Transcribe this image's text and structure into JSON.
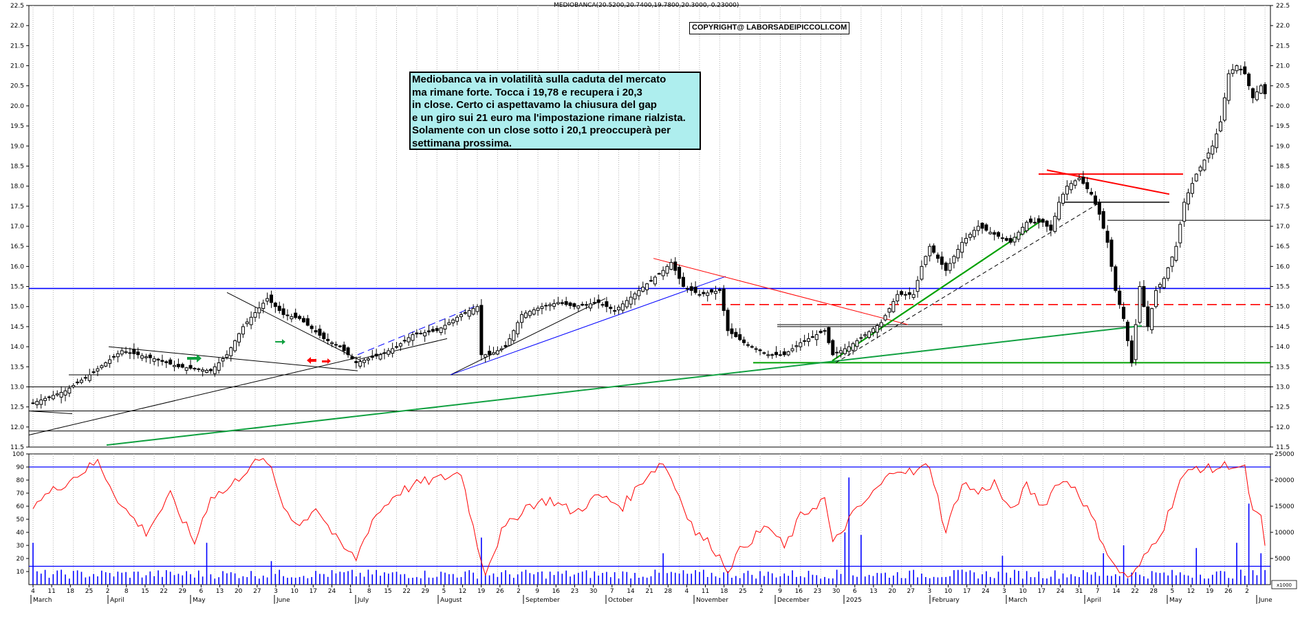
{
  "ticker_label": "MEDIOBANCA(20.5200,20.7400,19.7800,20.3000,-0.23000)",
  "copyright": "COPYRIGHT@ LABORSADEIPICCOLI.COM",
  "annotation_lines": [
    "Mediobanca va in volatilità sulla caduta del mercato",
    "ma rimane forte. Tocca i 19,78 e recupera i 20,3",
    "in close. Certo ci aspettavamo la chiusura del gap",
    "e un giro sui 21 euro ma l'impostazione rimane rialzista.",
    "Solamente con un close sotto i 20,1 preoccuperà per",
    "settimana prossima."
  ],
  "colors": {
    "candle": "#000000",
    "rsi": "#ff0000",
    "volume": "#0000ff",
    "support_green": "#00a000",
    "resistance_red": "#ff0000",
    "trend_blue": "#0000ff",
    "annotation_bg": "#aeeeee"
  },
  "chart_data": [
    {
      "type": "candlestick",
      "title": "MEDIOBANCA(20.5200,20.7400,19.7800,20.3000,-0.23000)",
      "ylim": [
        11.5,
        22.5
      ],
      "y_ticks": [
        "11.5",
        "12.0",
        "12.5",
        "13.0",
        "13.5",
        "14.0",
        "14.5",
        "15.0",
        "15.5",
        "16.0",
        "16.5",
        "17.0",
        "17.5",
        "18.0",
        "18.5",
        "19.0",
        "19.5",
        "20.0",
        "20.5",
        "21.0",
        "21.5",
        "22.0",
        "22.5"
      ],
      "last_bar": {
        "open": 20.52,
        "high": 20.74,
        "low": 19.78,
        "close": 20.3,
        "change": -0.23
      },
      "keyframes": [
        {
          "i": 0,
          "c": 12.6
        },
        {
          "i": 8,
          "c": 12.9
        },
        {
          "i": 14,
          "c": 13.3
        },
        {
          "i": 22,
          "c": 13.9
        },
        {
          "i": 30,
          "c": 13.7
        },
        {
          "i": 36,
          "c": 13.5
        },
        {
          "i": 44,
          "c": 13.4
        },
        {
          "i": 48,
          "c": 13.8
        },
        {
          "i": 52,
          "c": 14.5
        },
        {
          "i": 58,
          "c": 15.2
        },
        {
          "i": 62,
          "c": 14.8
        },
        {
          "i": 66,
          "c": 14.7
        },
        {
          "i": 72,
          "c": 14.2
        },
        {
          "i": 76,
          "c": 14.0
        },
        {
          "i": 80,
          "c": 13.6
        },
        {
          "i": 86,
          "c": 13.8
        },
        {
          "i": 90,
          "c": 14.0
        },
        {
          "i": 94,
          "c": 14.3
        },
        {
          "i": 100,
          "c": 14.4
        },
        {
          "i": 106,
          "c": 14.8
        },
        {
          "i": 110,
          "c": 15.0
        },
        {
          "i": 111,
          "c": 13.8
        },
        {
          "i": 113,
          "c": 13.8
        },
        {
          "i": 117,
          "c": 14.0
        },
        {
          "i": 121,
          "c": 14.8
        },
        {
          "i": 126,
          "c": 15.0
        },
        {
          "i": 130,
          "c": 15.1
        },
        {
          "i": 134,
          "c": 15.0
        },
        {
          "i": 140,
          "c": 15.1
        },
        {
          "i": 144,
          "c": 14.9
        },
        {
          "i": 150,
          "c": 15.4
        },
        {
          "i": 156,
          "c": 15.9
        },
        {
          "i": 158,
          "c": 16.1
        },
        {
          "i": 161,
          "c": 15.5
        },
        {
          "i": 165,
          "c": 15.3
        },
        {
          "i": 170,
          "c": 15.4
        },
        {
          "i": 172,
          "c": 14.4
        },
        {
          "i": 176,
          "c": 14.1
        },
        {
          "i": 182,
          "c": 13.8
        },
        {
          "i": 186,
          "c": 13.8
        },
        {
          "i": 190,
          "c": 14.1
        },
        {
          "i": 196,
          "c": 14.4
        },
        {
          "i": 198,
          "c": 13.8
        },
        {
          "i": 202,
          "c": 14.0
        },
        {
          "i": 206,
          "c": 14.3
        },
        {
          "i": 210,
          "c": 14.6
        },
        {
          "i": 214,
          "c": 15.3
        },
        {
          "i": 218,
          "c": 15.3
        },
        {
          "i": 220,
          "c": 16.0
        },
        {
          "i": 222,
          "c": 16.5
        },
        {
          "i": 226,
          "c": 15.9
        },
        {
          "i": 230,
          "c": 16.6
        },
        {
          "i": 234,
          "c": 17.0
        },
        {
          "i": 238,
          "c": 16.8
        },
        {
          "i": 242,
          "c": 16.6
        },
        {
          "i": 246,
          "c": 17.1
        },
        {
          "i": 250,
          "c": 17.1
        },
        {
          "i": 252,
          "c": 16.9
        },
        {
          "i": 254,
          "c": 17.6
        },
        {
          "i": 256,
          "c": 18.0
        },
        {
          "i": 259,
          "c": 18.2
        },
        {
          "i": 262,
          "c": 17.8
        },
        {
          "i": 264,
          "c": 17.3
        },
        {
          "i": 266,
          "c": 16.6
        },
        {
          "i": 268,
          "c": 15.4
        },
        {
          "i": 270,
          "c": 14.7
        },
        {
          "i": 272,
          "c": 13.6
        },
        {
          "i": 274,
          "c": 15.5
        },
        {
          "i": 276,
          "c": 14.5
        },
        {
          "i": 278,
          "c": 15.4
        },
        {
          "i": 280,
          "c": 15.7
        },
        {
          "i": 283,
          "c": 16.5
        },
        {
          "i": 285,
          "c": 17.6
        },
        {
          "i": 288,
          "c": 18.3
        },
        {
          "i": 292,
          "c": 19.0
        },
        {
          "i": 294,
          "c": 19.6
        },
        {
          "i": 296,
          "c": 20.8
        },
        {
          "i": 298,
          "c": 21.0
        },
        {
          "i": 300,
          "c": 20.8
        },
        {
          "i": 302,
          "c": 20.2
        },
        {
          "i": 304,
          "c": 20.5
        },
        {
          "i": 305,
          "c": 20.3
        }
      ]
    },
    {
      "type": "line",
      "series": [
        {
          "name": "",
          "note": "oscillator"
        }
      ],
      "ylim": [
        0,
        100
      ],
      "y_ticks": [
        "10",
        "20",
        "30",
        "40",
        "50",
        "60",
        "70",
        "80",
        "90",
        "100"
      ],
      "reference_lines": [
        90,
        14
      ],
      "keyframes": [
        {
          "i": 0,
          "v": 62
        },
        {
          "i": 8,
          "v": 78
        },
        {
          "i": 16,
          "v": 94
        },
        {
          "i": 22,
          "v": 60
        },
        {
          "i": 28,
          "v": 40
        },
        {
          "i": 34,
          "v": 68
        },
        {
          "i": 40,
          "v": 32
        },
        {
          "i": 44,
          "v": 68
        },
        {
          "i": 48,
          "v": 72
        },
        {
          "i": 54,
          "v": 92
        },
        {
          "i": 58,
          "v": 95
        },
        {
          "i": 62,
          "v": 60
        },
        {
          "i": 66,
          "v": 45
        },
        {
          "i": 70,
          "v": 60
        },
        {
          "i": 76,
          "v": 30
        },
        {
          "i": 80,
          "v": 20
        },
        {
          "i": 84,
          "v": 50
        },
        {
          "i": 90,
          "v": 70
        },
        {
          "i": 96,
          "v": 78
        },
        {
          "i": 102,
          "v": 82
        },
        {
          "i": 106,
          "v": 86
        },
        {
          "i": 110,
          "v": 30
        },
        {
          "i": 112,
          "v": 10
        },
        {
          "i": 116,
          "v": 40
        },
        {
          "i": 122,
          "v": 60
        },
        {
          "i": 128,
          "v": 65
        },
        {
          "i": 134,
          "v": 55
        },
        {
          "i": 140,
          "v": 68
        },
        {
          "i": 146,
          "v": 60
        },
        {
          "i": 152,
          "v": 84
        },
        {
          "i": 156,
          "v": 94
        },
        {
          "i": 160,
          "v": 68
        },
        {
          "i": 164,
          "v": 40
        },
        {
          "i": 168,
          "v": 30
        },
        {
          "i": 172,
          "v": 12
        },
        {
          "i": 176,
          "v": 30
        },
        {
          "i": 182,
          "v": 45
        },
        {
          "i": 186,
          "v": 28
        },
        {
          "i": 190,
          "v": 52
        },
        {
          "i": 196,
          "v": 66
        },
        {
          "i": 198,
          "v": 30
        },
        {
          "i": 202,
          "v": 50
        },
        {
          "i": 208,
          "v": 70
        },
        {
          "i": 214,
          "v": 90
        },
        {
          "i": 218,
          "v": 85
        },
        {
          "i": 222,
          "v": 92
        },
        {
          "i": 226,
          "v": 40
        },
        {
          "i": 230,
          "v": 78
        },
        {
          "i": 234,
          "v": 70
        },
        {
          "i": 238,
          "v": 78
        },
        {
          "i": 242,
          "v": 55
        },
        {
          "i": 246,
          "v": 75
        },
        {
          "i": 250,
          "v": 60
        },
        {
          "i": 254,
          "v": 80
        },
        {
          "i": 258,
          "v": 75
        },
        {
          "i": 262,
          "v": 52
        },
        {
          "i": 266,
          "v": 25
        },
        {
          "i": 268,
          "v": 12
        },
        {
          "i": 272,
          "v": 5
        },
        {
          "i": 276,
          "v": 25
        },
        {
          "i": 280,
          "v": 45
        },
        {
          "i": 284,
          "v": 80
        },
        {
          "i": 288,
          "v": 90
        },
        {
          "i": 292,
          "v": 88
        },
        {
          "i": 296,
          "v": 92
        },
        {
          "i": 300,
          "v": 88
        },
        {
          "i": 302,
          "v": 55
        },
        {
          "i": 304,
          "v": 50
        },
        {
          "i": 305,
          "v": 28
        }
      ]
    },
    {
      "type": "bar",
      "series": [
        {
          "name": "",
          "note": "volume"
        }
      ],
      "ylim": [
        0,
        25000
      ],
      "y_ticks": [
        "5000",
        "10000",
        "15000",
        "20000",
        "25000"
      ],
      "unit_label": "x1000",
      "base_level": 3200,
      "spikes": [
        {
          "i": 0,
          "v": 8000
        },
        {
          "i": 43,
          "v": 8000
        },
        {
          "i": 59,
          "v": 4500
        },
        {
          "i": 111,
          "v": 9000
        },
        {
          "i": 156,
          "v": 6000
        },
        {
          "i": 201,
          "v": 10000
        },
        {
          "i": 202,
          "v": 20500
        },
        {
          "i": 205,
          "v": 9500
        },
        {
          "i": 240,
          "v": 5500
        },
        {
          "i": 265,
          "v": 6000
        },
        {
          "i": 270,
          "v": 7500
        },
        {
          "i": 288,
          "v": 7000
        },
        {
          "i": 298,
          "v": 8000
        },
        {
          "i": 301,
          "v": 15500
        },
        {
          "i": 304,
          "v": 6000
        }
      ]
    }
  ],
  "x_axis": {
    "day_labels": [
      "4",
      "11",
      "18",
      "25",
      "2",
      "8",
      "15",
      "22",
      "29",
      "6",
      "13",
      "20",
      "27",
      "3",
      "10",
      "17",
      "24",
      "1",
      "8",
      "15",
      "22",
      "29",
      "5",
      "12",
      "19",
      "26",
      "2",
      "9",
      "16",
      "23",
      "30",
      "7",
      "14",
      "21",
      "28",
      "4",
      "11",
      "18",
      "25",
      "2",
      "9",
      "16",
      "23",
      "30",
      "6",
      "13",
      "20",
      "27",
      "3",
      "10",
      "17",
      "24",
      "3",
      "10",
      "17",
      "24",
      "31",
      "7",
      "14",
      "22",
      "28",
      "5",
      "12",
      "19",
      "26",
      "2"
    ],
    "month_labels": [
      "March",
      "April",
      "May",
      "June",
      "July",
      "August",
      "September",
      "October",
      "November",
      "December",
      "2025",
      "February",
      "March",
      "April",
      "May",
      "June"
    ]
  }
}
